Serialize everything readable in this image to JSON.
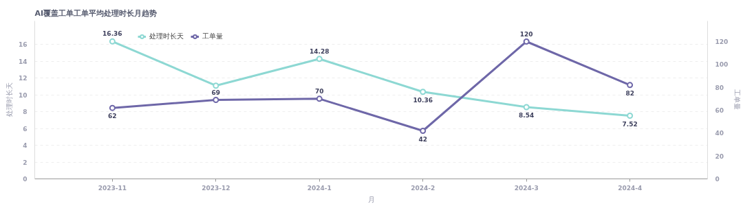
{
  "chart_data": {
    "type": "line",
    "title": "AI覆盖工单工单平均处理时长月趋势",
    "xlabel": "月",
    "ylabel": "处理时长天",
    "y2label": "工单量",
    "categories": [
      "2023-11",
      "2023-12",
      "2024-1",
      "2024-2",
      "2024-3",
      "2024-4"
    ],
    "series": [
      {
        "name": "处理时长天",
        "color": "#8dd8d3",
        "values": [
          16.36,
          11.1,
          14.28,
          10.36,
          8.54,
          7.52
        ],
        "value_labels": [
          "16.36",
          null,
          "14.28",
          "10.36",
          "8.54",
          "7.52"
        ]
      },
      {
        "name": "工单量",
        "color": "#6e67a8",
        "axis": "y2",
        "values": [
          62,
          69,
          70,
          42,
          120,
          82
        ],
        "value_labels": [
          "62",
          "69",
          "70",
          "42",
          "120",
          "82"
        ]
      }
    ],
    "ylim": [
      0,
      18.8
    ],
    "yticks": [
      0,
      2,
      4,
      6,
      8,
      10,
      12,
      14,
      16
    ],
    "y2lim": [
      0,
      138
    ],
    "y2ticks": [
      0,
      20,
      40,
      60,
      80,
      100,
      120
    ],
    "grid": "y",
    "legend": "top left",
    "marker": "circle",
    "line_style": "solid"
  }
}
